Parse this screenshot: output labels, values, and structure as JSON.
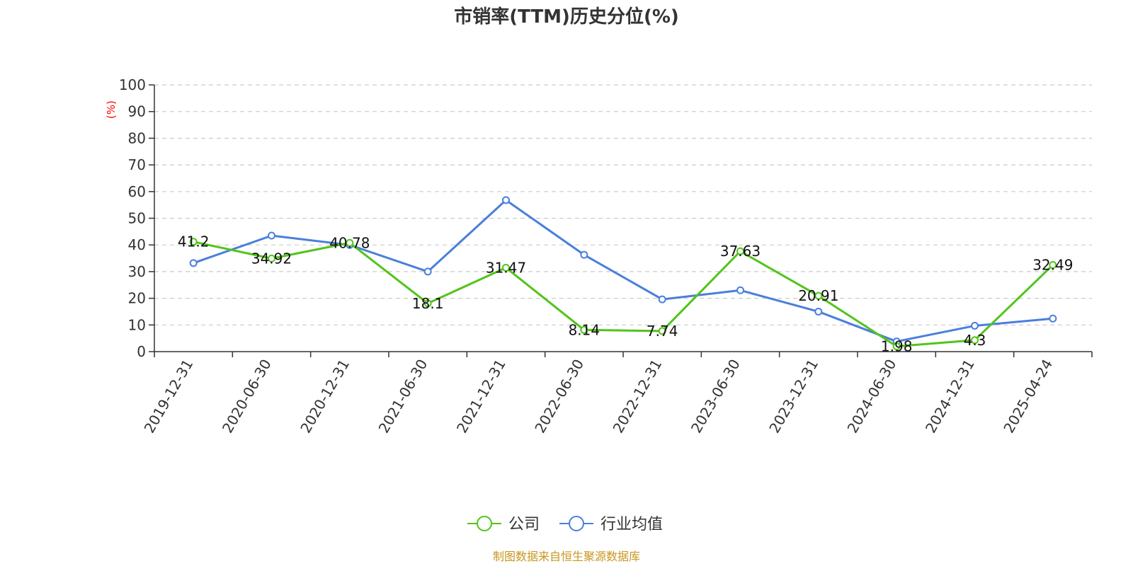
{
  "chart_data": {
    "type": "line",
    "title": "市销率(TTM)历史分位(%)",
    "y_unit_label": "(%)",
    "ylim": [
      0,
      100
    ],
    "y_ticks": [
      0,
      10,
      20,
      30,
      40,
      50,
      60,
      70,
      80,
      90,
      100
    ],
    "grid": true,
    "legend_position": "bottom-center",
    "categories": [
      "2019-12-31",
      "2020-06-30",
      "2020-12-31",
      "2021-06-30",
      "2021-12-31",
      "2022-06-30",
      "2022-12-31",
      "2023-06-30",
      "2023-12-31",
      "2024-06-30",
      "2024-12-31",
      "2025-04-24"
    ],
    "series": [
      {
        "name": "公司",
        "color": "#52c41a",
        "values": [
          41.2,
          34.92,
          40.78,
          18.1,
          31.47,
          8.14,
          7.74,
          37.63,
          20.91,
          1.98,
          4.3,
          32.49
        ],
        "labels": [
          "41.2",
          "34.92",
          "40.78",
          "18.1",
          "31.47",
          "8.14",
          "7.74",
          "37.63",
          "20.91",
          "1.98",
          "4.3",
          "32.49"
        ]
      },
      {
        "name": "行业均值",
        "color": "#4a7fdc",
        "values": [
          33.2,
          43.5,
          40.0,
          30.0,
          56.8,
          36.3,
          19.6,
          23.0,
          15.0,
          3.8,
          9.7,
          12.4
        ]
      }
    ]
  },
  "footer": {
    "source": "制图数据来自恒生聚源数据库"
  }
}
